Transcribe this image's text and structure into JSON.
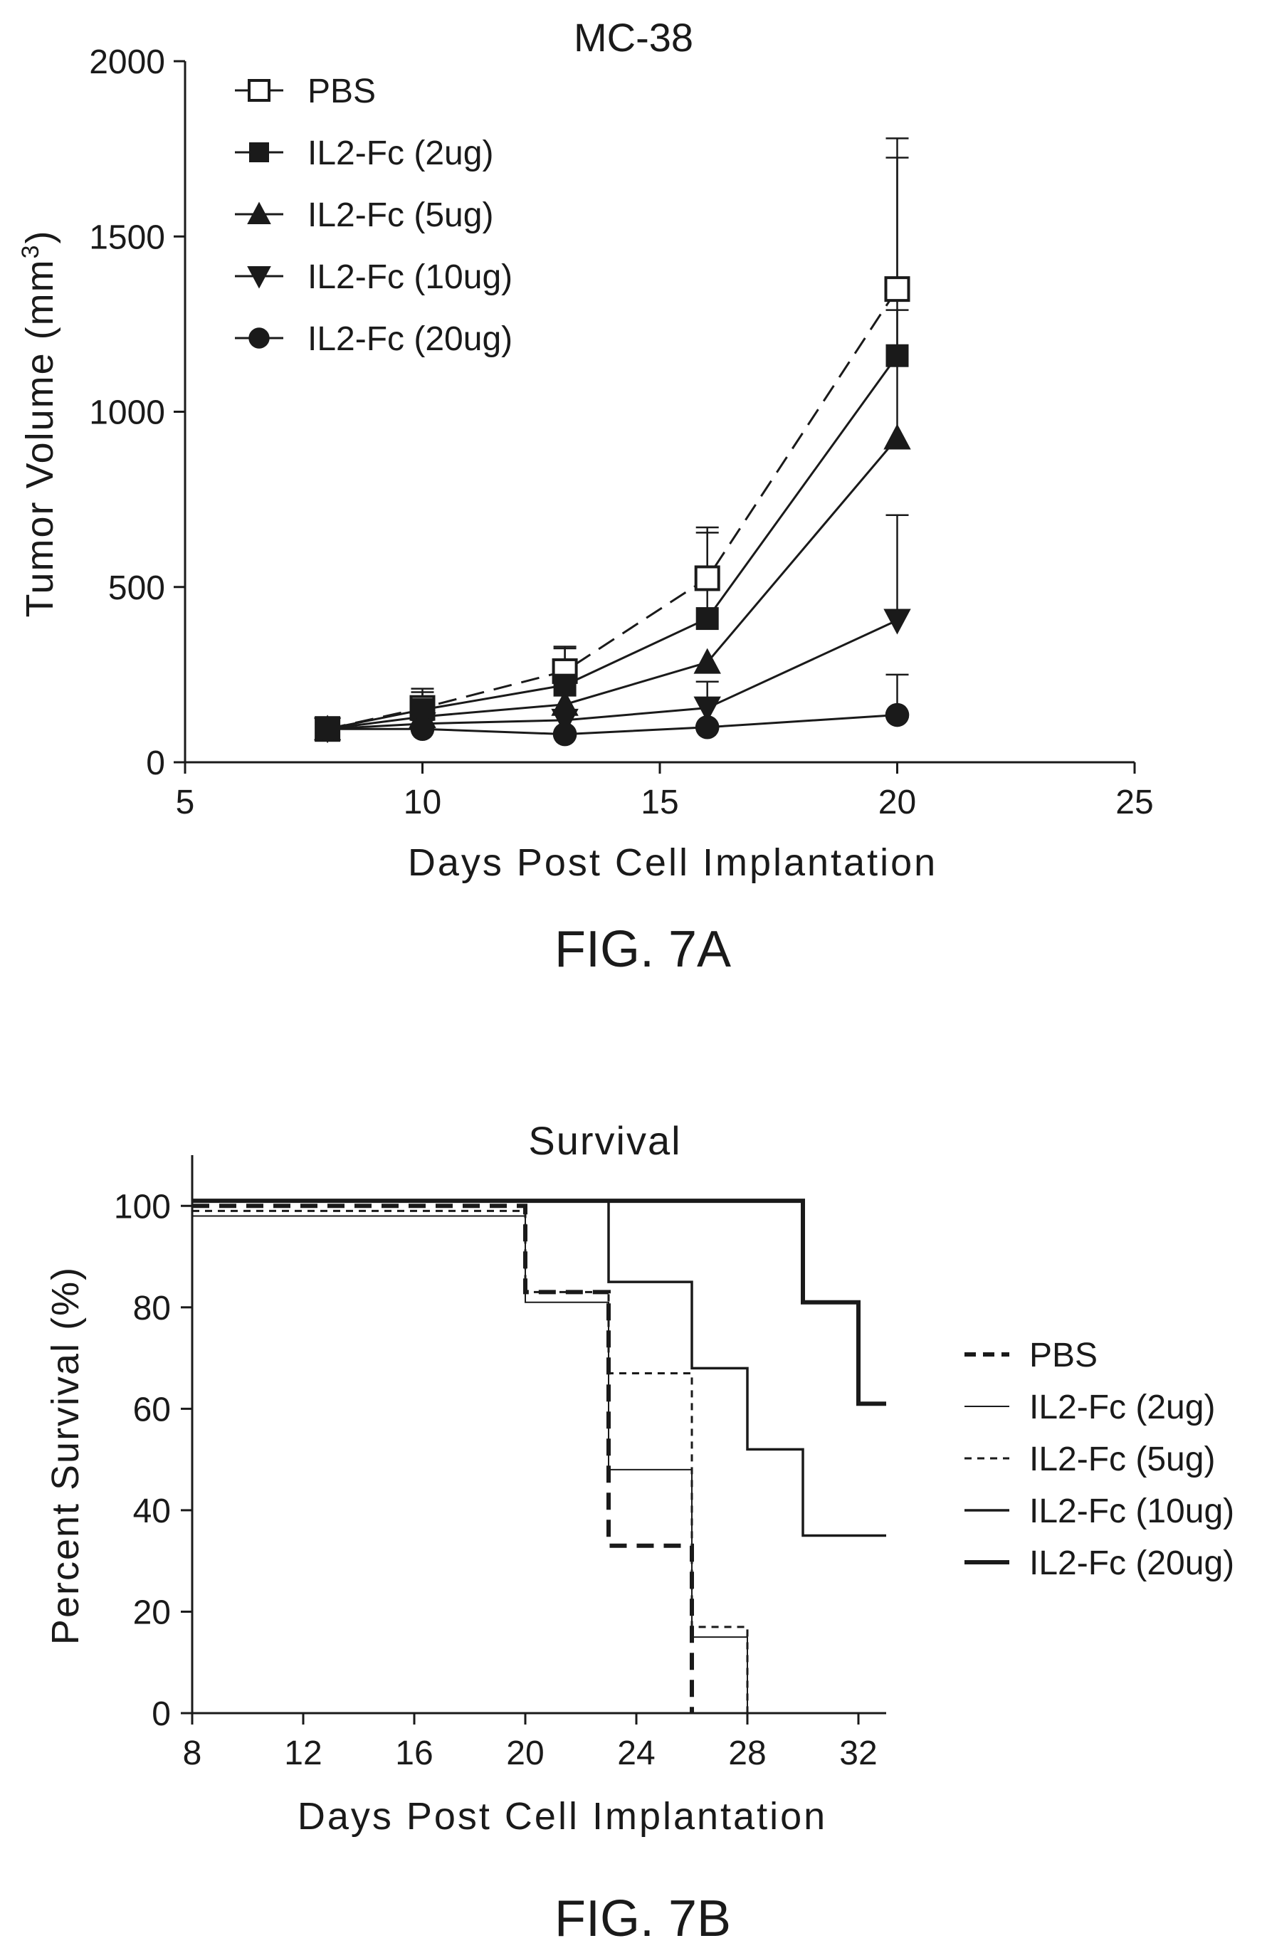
{
  "chart_data": [
    {
      "type": "line",
      "title": "MC-38",
      "xlabel": "Days Post Cell Implantation",
      "ylabel_main": "Tumor Volume (mm",
      "ylabel_sup": "3",
      "ylabel_close": ")",
      "xlim": [
        5,
        25
      ],
      "ylim": [
        0,
        2000
      ],
      "xticks": [
        "5",
        "10",
        "15",
        "20",
        "25"
      ],
      "yticks": [
        "0",
        "500",
        "1000",
        "1500",
        "2000"
      ],
      "legend_position": "top-left",
      "caption": "FIG. 7A",
      "x": [
        8,
        10,
        13,
        16,
        20
      ],
      "series": [
        {
          "name": "PBS",
          "marker": "square-open",
          "dash": "dashed",
          "values": [
            95,
            155,
            260,
            525,
            1350
          ],
          "error_up": [
            null,
            210,
            330,
            670,
            1780
          ]
        },
        {
          "name": "IL2-Fc (2ug)",
          "marker": "square",
          "dash": "solid",
          "values": [
            95,
            150,
            220,
            410,
            1160
          ],
          "error_up": [
            null,
            200,
            325,
            655,
            1725
          ]
        },
        {
          "name": "IL2-Fc (5ug)",
          "marker": "triangle-up",
          "dash": "solid",
          "values": [
            95,
            130,
            165,
            285,
            925
          ],
          "error_up": [
            null,
            null,
            null,
            null,
            1290
          ]
        },
        {
          "name": "IL2-Fc (10ug)",
          "marker": "triangle-down",
          "dash": "solid",
          "values": [
            95,
            110,
            120,
            155,
            405
          ],
          "error_up": [
            null,
            null,
            null,
            230,
            705
          ]
        },
        {
          "name": "IL2-Fc (20ug)",
          "marker": "circle",
          "dash": "solid",
          "values": [
            95,
            95,
            80,
            100,
            135
          ],
          "error_up": [
            null,
            null,
            null,
            null,
            250
          ]
        }
      ]
    },
    {
      "type": "line",
      "subtype": "survival-step",
      "title": "Survival",
      "xlabel": "Days Post Cell Implantation",
      "ylabel": "Percent Survival (%)",
      "xlim": [
        8,
        33
      ],
      "ylim": [
        0,
        110
      ],
      "xticks": [
        "8",
        "12",
        "16",
        "20",
        "24",
        "28",
        "32"
      ],
      "yticks": [
        "0",
        "20",
        "40",
        "60",
        "80",
        "100"
      ],
      "legend_position": "right",
      "caption": "FIG. 7B",
      "series": [
        {
          "name": "PBS",
          "style": "bold-dashed",
          "steps": [
            [
              8,
              100
            ],
            [
              20,
              100
            ],
            [
              20,
              83
            ],
            [
              23,
              83
            ],
            [
              23,
              33
            ],
            [
              26,
              33
            ],
            [
              26,
              0
            ]
          ]
        },
        {
          "name": "IL2-Fc (2ug)",
          "style": "thin",
          "steps": [
            [
              8,
              98
            ],
            [
              20,
              98
            ],
            [
              20,
              81
            ],
            [
              23,
              81
            ],
            [
              23,
              48
            ],
            [
              26,
              48
            ],
            [
              26,
              15
            ],
            [
              28,
              15
            ],
            [
              28,
              0
            ]
          ]
        },
        {
          "name": "IL2-Fc (5ug)",
          "style": "dotted",
          "steps": [
            [
              8,
              99
            ],
            [
              20,
              99
            ],
            [
              20,
              83
            ],
            [
              23,
              83
            ],
            [
              23,
              67
            ],
            [
              26,
              67
            ],
            [
              26,
              17
            ],
            [
              28,
              17
            ],
            [
              28,
              0
            ]
          ]
        },
        {
          "name": "IL2-Fc (10ug)",
          "style": "medium",
          "steps": [
            [
              8,
              101
            ],
            [
              23,
              101
            ],
            [
              23,
              85
            ],
            [
              26,
              85
            ],
            [
              26,
              68
            ],
            [
              28,
              68
            ],
            [
              28,
              52
            ],
            [
              30,
              52
            ],
            [
              30,
              35
            ],
            [
              33,
              35
            ]
          ]
        },
        {
          "name": "IL2-Fc (20ug)",
          "style": "bold",
          "steps": [
            [
              8,
              101
            ],
            [
              30,
              101
            ],
            [
              30,
              81
            ],
            [
              32,
              81
            ],
            [
              32,
              61
            ],
            [
              33,
              61
            ]
          ]
        }
      ]
    }
  ]
}
